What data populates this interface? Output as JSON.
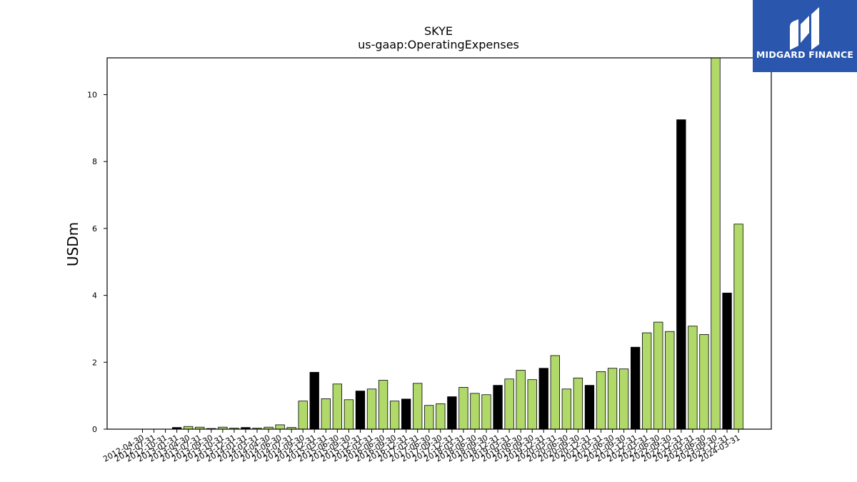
{
  "logo": {
    "text": "MIDGARD FINANCE",
    "background": "#2b56ad"
  },
  "chart_data": {
    "type": "bar",
    "title": "SKYE",
    "subtitle": "us-gaap:OperatingExpenses",
    "ylabel": "USDm",
    "xlabel": "",
    "ylim": [
      0,
      11.1
    ],
    "yticks": [
      0,
      2,
      4,
      6,
      8,
      10
    ],
    "grid": false,
    "colors": {
      "quarter": "#b0d96a",
      "annual": "#000000",
      "edge": "#000000"
    },
    "categories": [
      "2012-04-30",
      "2012-07-31",
      "2012-10-31",
      "2013-01-31",
      "2013-04-30",
      "2013-07-31",
      "2013-09-30",
      "2013-10-31",
      "2013-12-31",
      "2014-01-31",
      "2014-03-31",
      "2014-04-30",
      "2014-06-30",
      "2014-07-31",
      "2014-09-30",
      "2014-12-31",
      "2015-03-31",
      "2015-06-30",
      "2015-09-30",
      "2015-12-31",
      "2016-03-31",
      "2016-06-30",
      "2016-09-30",
      "2016-12-31",
      "2017-03-31",
      "2017-06-30",
      "2017-09-30",
      "2017-12-31",
      "2018-03-31",
      "2018-06-30",
      "2018-09-30",
      "2018-12-31",
      "2019-03-31",
      "2019-06-30",
      "2019-09-30",
      "2019-12-31",
      "2020-03-31",
      "2020-06-30",
      "2020-09-30",
      "2020-12-31",
      "2021-03-31",
      "2021-06-30",
      "2021-09-30",
      "2021-12-31",
      "2022-03-31",
      "2022-06-30",
      "2022-09-30",
      "2022-12-31",
      "2023-03-31",
      "2023-06-30",
      "2023-09-30",
      "2023-12-31",
      "2024-03-31"
    ],
    "values": [
      0.0,
      0.0,
      0.0,
      0.05,
      0.08,
      0.06,
      0.02,
      0.06,
      0.03,
      0.05,
      0.03,
      0.06,
      0.13,
      0.05,
      0.84,
      1.7,
      0.91,
      1.35,
      0.88,
      1.14,
      1.2,
      1.46,
      0.84,
      0.9,
      1.37,
      0.71,
      0.76,
      0.97,
      1.25,
      1.07,
      1.03,
      1.31,
      1.5,
      1.76,
      1.48,
      1.82,
      2.2,
      1.2,
      1.53,
      1.31,
      1.72,
      1.82,
      1.8,
      2.45,
      2.88,
      3.2,
      2.92,
      9.25,
      3.08,
      2.83,
      11.1,
      4.07,
      6.13
    ],
    "annual": [
      false,
      false,
      false,
      true,
      false,
      false,
      false,
      false,
      false,
      true,
      false,
      false,
      false,
      false,
      false,
      true,
      false,
      false,
      false,
      true,
      false,
      false,
      false,
      true,
      false,
      false,
      false,
      true,
      false,
      false,
      false,
      true,
      false,
      false,
      false,
      true,
      false,
      false,
      false,
      true,
      false,
      false,
      false,
      true,
      false,
      false,
      false,
      true,
      false,
      false,
      false,
      true,
      false
    ]
  }
}
